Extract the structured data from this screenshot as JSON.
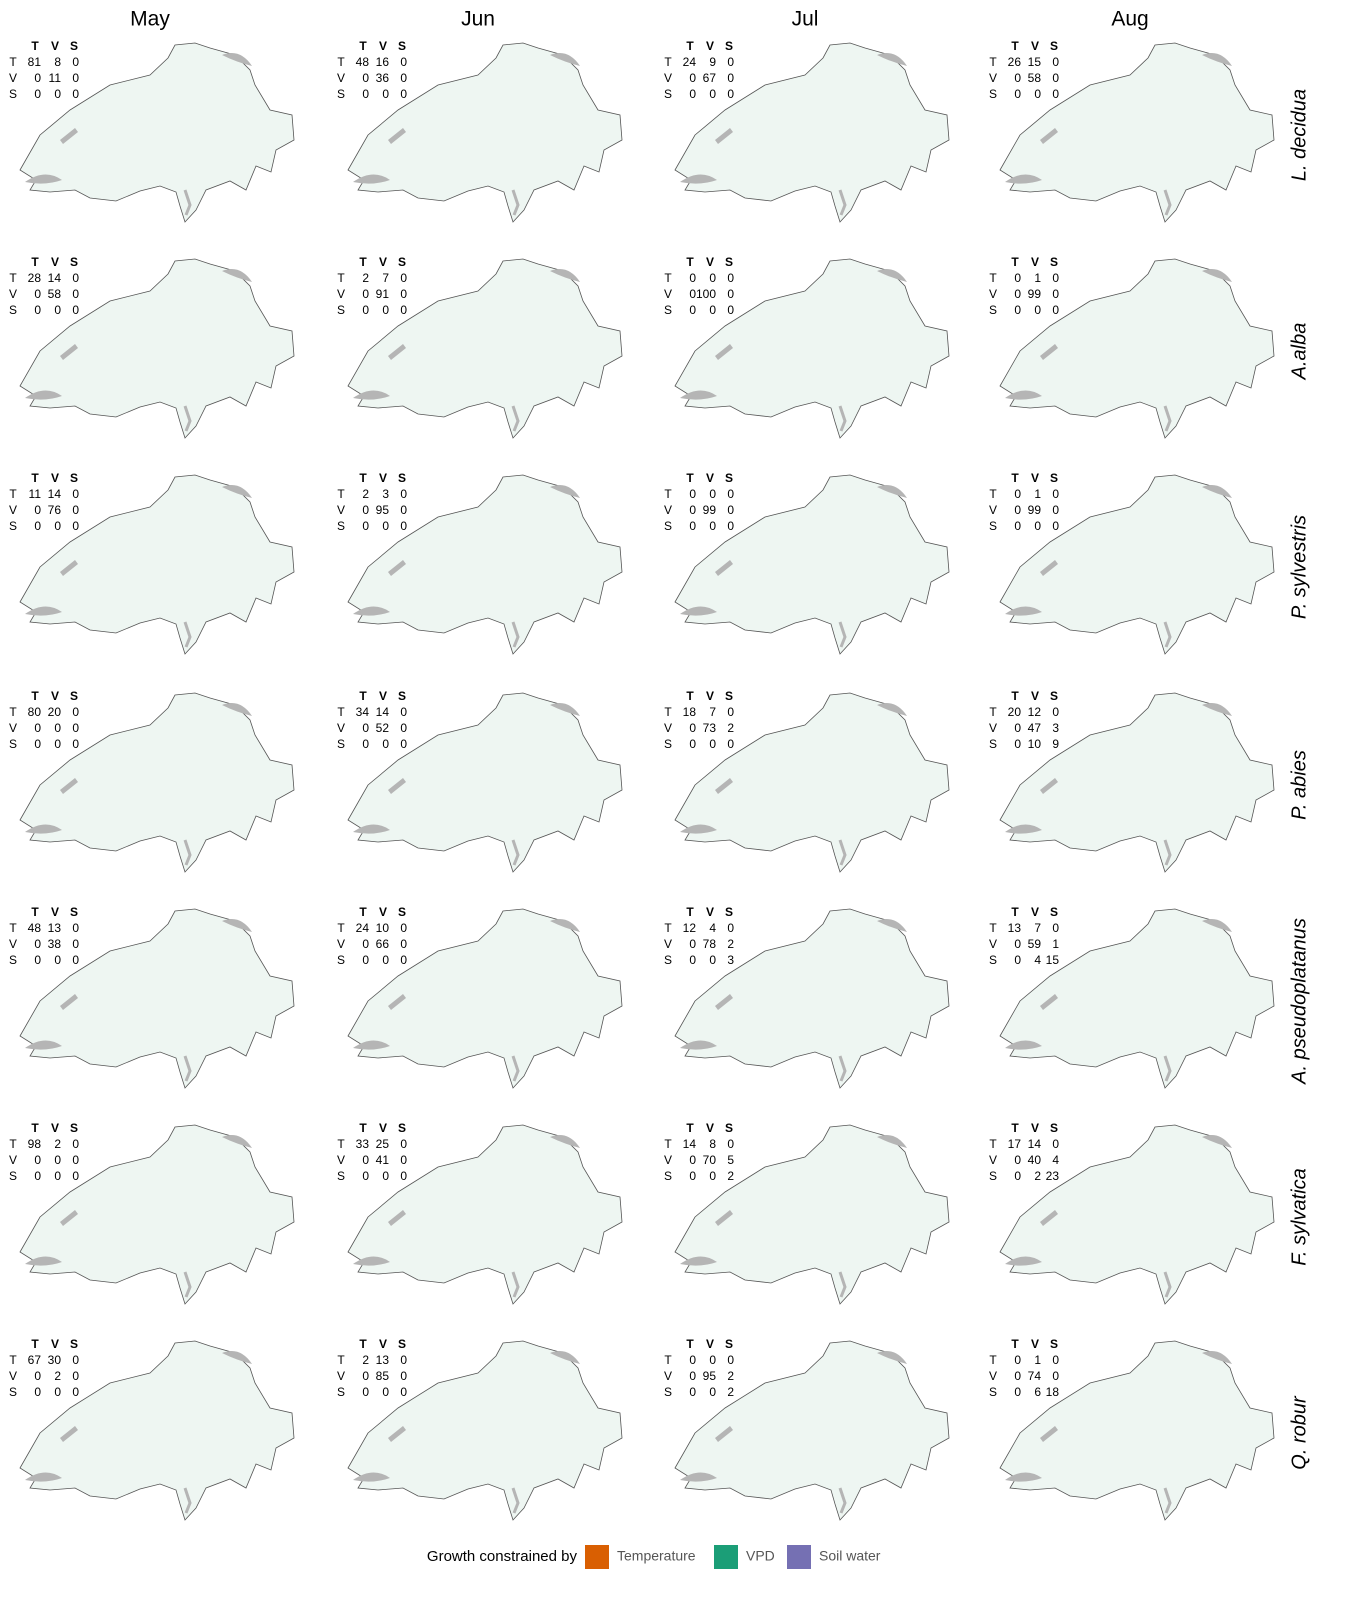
{
  "columns": [
    "May",
    "Jun",
    "Jul",
    "Aug"
  ],
  "rows": [
    "L. decidua",
    "A.alba",
    "P. sylvestris",
    "P. abies",
    "A. pseudoplatanus",
    "F. sylvatica",
    "Q. robur"
  ],
  "matrix_labels": [
    "T",
    "V",
    "S"
  ],
  "panels": [
    [
      [
        [
          81,
          8,
          0
        ],
        [
          0,
          11,
          0
        ],
        [
          0,
          0,
          0
        ]
      ],
      [
        [
          48,
          16,
          0
        ],
        [
          0,
          36,
          0
        ],
        [
          0,
          0,
          0
        ]
      ],
      [
        [
          24,
          9,
          0
        ],
        [
          0,
          67,
          0
        ],
        [
          0,
          0,
          0
        ]
      ],
      [
        [
          26,
          15,
          0
        ],
        [
          0,
          58,
          0
        ],
        [
          0,
          0,
          0
        ]
      ]
    ],
    [
      [
        [
          28,
          14,
          0
        ],
        [
          0,
          58,
          0
        ],
        [
          0,
          0,
          0
        ]
      ],
      [
        [
          2,
          7,
          0
        ],
        [
          0,
          91,
          0
        ],
        [
          0,
          0,
          0
        ]
      ],
      [
        [
          0,
          0,
          0
        ],
        [
          0,
          100,
          0
        ],
        [
          0,
          0,
          0
        ]
      ],
      [
        [
          0,
          1,
          0
        ],
        [
          0,
          99,
          0
        ],
        [
          0,
          0,
          0
        ]
      ]
    ],
    [
      [
        [
          11,
          14,
          0
        ],
        [
          0,
          76,
          0
        ],
        [
          0,
          0,
          0
        ]
      ],
      [
        [
          2,
          3,
          0
        ],
        [
          0,
          95,
          0
        ],
        [
          0,
          0,
          0
        ]
      ],
      [
        [
          0,
          0,
          0
        ],
        [
          0,
          99,
          0
        ],
        [
          0,
          0,
          0
        ]
      ],
      [
        [
          0,
          1,
          0
        ],
        [
          0,
          99,
          0
        ],
        [
          0,
          0,
          0
        ]
      ]
    ],
    [
      [
        [
          80,
          20,
          0
        ],
        [
          0,
          0,
          0
        ],
        [
          0,
          0,
          0
        ]
      ],
      [
        [
          34,
          14,
          0
        ],
        [
          0,
          52,
          0
        ],
        [
          0,
          0,
          0
        ]
      ],
      [
        [
          18,
          7,
          0
        ],
        [
          0,
          73,
          2
        ],
        [
          0,
          0,
          0
        ]
      ],
      [
        [
          20,
          12,
          0
        ],
        [
          0,
          47,
          3
        ],
        [
          0,
          10,
          9
        ]
      ]
    ],
    [
      [
        [
          48,
          13,
          0
        ],
        [
          0,
          38,
          0
        ],
        [
          0,
          0,
          0
        ]
      ],
      [
        [
          24,
          10,
          0
        ],
        [
          0,
          66,
          0
        ],
        [
          0,
          0,
          0
        ]
      ],
      [
        [
          12,
          4,
          0
        ],
        [
          0,
          78,
          2
        ],
        [
          0,
          0,
          3
        ]
      ],
      [
        [
          13,
          7,
          0
        ],
        [
          0,
          59,
          1
        ],
        [
          0,
          4,
          15
        ]
      ]
    ],
    [
      [
        [
          98,
          2,
          0
        ],
        [
          0,
          0,
          0
        ],
        [
          0,
          0,
          0
        ]
      ],
      [
        [
          33,
          25,
          0
        ],
        [
          0,
          41,
          0
        ],
        [
          0,
          0,
          0
        ]
      ],
      [
        [
          14,
          8,
          0
        ],
        [
          0,
          70,
          5
        ],
        [
          0,
          0,
          2
        ]
      ],
      [
        [
          17,
          14,
          0
        ],
        [
          0,
          40,
          4
        ],
        [
          0,
          2,
          23
        ]
      ]
    ],
    [
      [
        [
          67,
          30,
          0
        ],
        [
          0,
          2,
          0
        ],
        [
          0,
          0,
          0
        ]
      ],
      [
        [
          2,
          13,
          0
        ],
        [
          0,
          85,
          0
        ],
        [
          0,
          0,
          0
        ]
      ],
      [
        [
          0,
          0,
          0
        ],
        [
          0,
          95,
          2
        ],
        [
          0,
          0,
          2
        ]
      ],
      [
        [
          0,
          1,
          0
        ],
        [
          0,
          74,
          0
        ],
        [
          0,
          6,
          18
        ]
      ]
    ]
  ],
  "legend": {
    "title": "Growth constrained by",
    "items": [
      {
        "name": "Temperature",
        "color": "#d95f02"
      },
      {
        "name": "VPD",
        "color": "#1b9e77"
      },
      {
        "name": "Soil water",
        "color": "#7570b3"
      }
    ]
  }
}
